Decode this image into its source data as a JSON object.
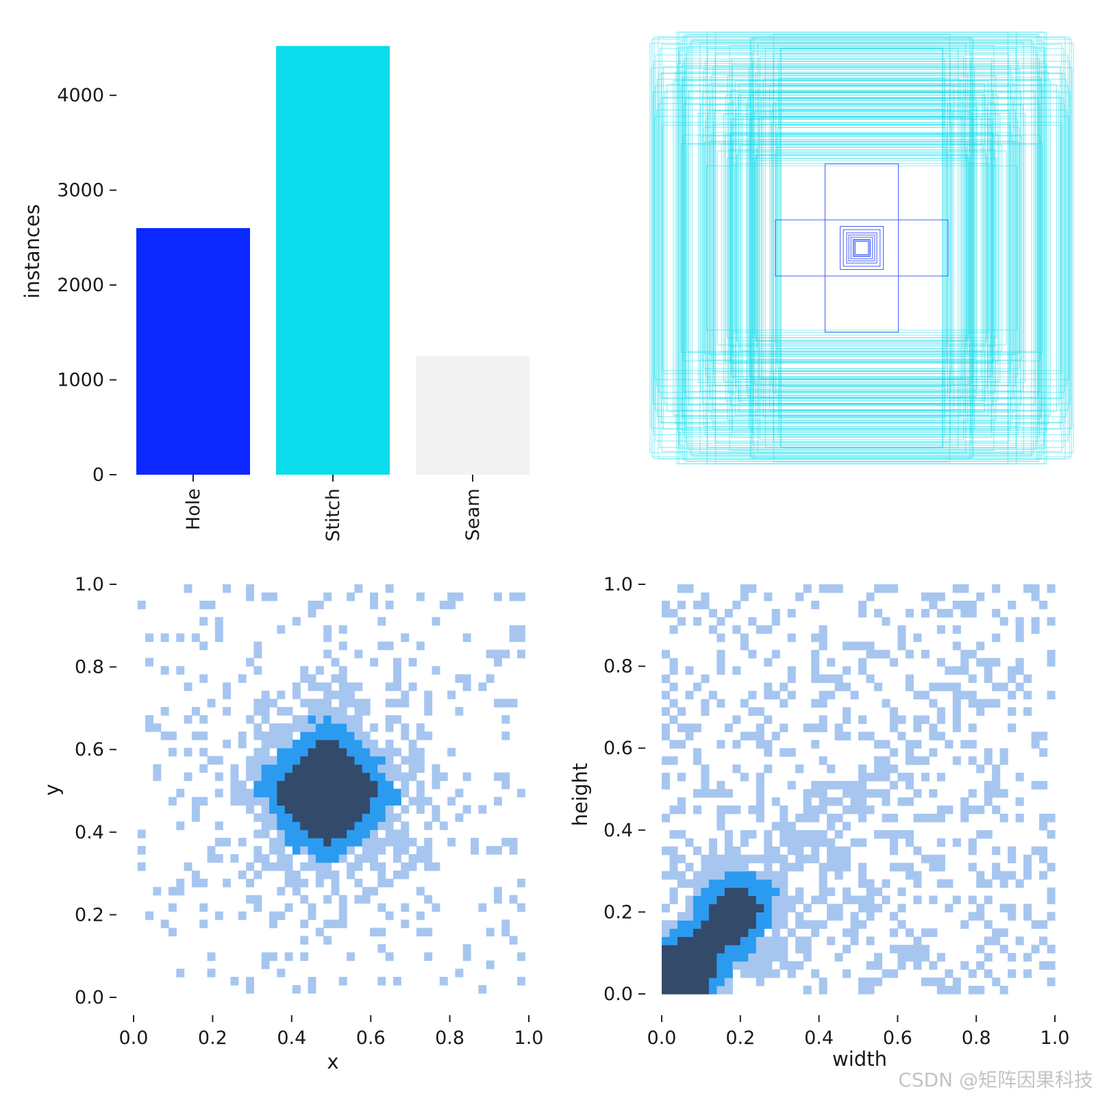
{
  "chart_data": [
    {
      "type": "bar",
      "categories": [
        "Hole",
        "Stitch",
        "Seam"
      ],
      "values": [
        2600,
        4520,
        1250
      ],
      "colors": [
        "#0a28ff",
        "#0bdceb",
        "#f2f2f2"
      ],
      "ylabel": "instances",
      "ylim": [
        0,
        4550
      ],
      "yticks": [
        0,
        1000,
        2000,
        3000,
        4000
      ],
      "ytick_labels": [
        "0",
        "1000",
        "2000",
        "3000",
        "4000"
      ],
      "grid": false
    },
    {
      "type": "box_overlay",
      "colors": [
        "#0a28ff",
        "#0bdceb"
      ],
      "groups": [
        {
          "class": "Stitch",
          "color_index": 1,
          "box_widths": [
            0.99,
            0.97,
            0.95,
            0.92,
            0.9,
            0.88,
            0.86,
            0.84,
            0.82,
            0.8,
            0.78,
            0.76,
            0.74,
            0.72,
            0.7,
            0.68,
            0.66,
            0.64,
            0.62,
            0.6,
            0.58,
            0.56,
            0.54,
            0.52,
            0.5,
            0.48,
            0.46,
            0.44,
            0.42,
            0.4,
            0.39,
            0.5,
            0.56,
            0.58,
            0.7,
            0.83,
            0.93,
            0.5,
            0.4
          ],
          "box_heights": [
            0.58,
            0.62,
            0.66,
            0.7,
            0.74,
            0.78,
            0.82,
            0.86,
            0.9,
            0.94,
            0.97,
            0.99,
            1.0,
            0.75,
            0.8,
            0.85,
            0.92,
            0.5,
            0.55,
            0.6,
            0.65,
            0.72,
            0.5,
            0.4,
            0.45,
            0.6,
            0.7,
            0.8,
            0.95,
            0.9,
            0.63,
            0.5,
            0.77,
            0.87,
            0.42,
            0.46,
            0.56,
            0.98,
            0.68
          ]
        },
        {
          "class": "Hole",
          "color_index": 0,
          "box_widths": [
            0.4,
            0.17,
            0.1,
            0.085,
            0.07,
            0.06,
            0.05,
            0.04,
            0.035
          ],
          "box_heights": [
            0.13,
            0.39,
            0.1,
            0.085,
            0.07,
            0.06,
            0.05,
            0.04,
            0.035
          ]
        }
      ],
      "center_box": {
        "width": 0.03,
        "height": 0.03
      }
    },
    {
      "type": "heatmap",
      "kind": "2d-histogram",
      "xlabel": "x",
      "ylabel": "y",
      "xlim": [
        0,
        1
      ],
      "ylim": [
        0,
        1
      ],
      "xticks": [
        0.0,
        0.2,
        0.4,
        0.6,
        0.8,
        1.0
      ],
      "yticks": [
        0.0,
        0.2,
        0.4,
        0.6,
        0.8,
        1.0
      ],
      "xtick_labels": [
        "0.0",
        "0.2",
        "0.4",
        "0.6",
        "0.8",
        "1.0"
      ],
      "ytick_labels": [
        "0.0",
        "0.2",
        "0.4",
        "0.6",
        "0.8",
        "1.0"
      ],
      "bins": 50,
      "x_range": [
        0.01,
        0.99
      ],
      "y_range": [
        0.01,
        1.0
      ],
      "density_center": [
        0.49,
        0.5
      ],
      "density_spread": [
        0.2,
        0.2
      ],
      "colors": [
        "#a6c6f0",
        "#2b9bf0",
        "#344a6a"
      ]
    },
    {
      "type": "heatmap",
      "kind": "2d-histogram",
      "xlabel": "width",
      "ylabel": "height",
      "xlim": [
        0,
        1
      ],
      "ylim": [
        0,
        1
      ],
      "xticks": [
        0.0,
        0.2,
        0.4,
        0.6,
        0.8,
        1.0
      ],
      "yticks": [
        0.0,
        0.2,
        0.4,
        0.6,
        0.8,
        1.0
      ],
      "xtick_labels": [
        "0.0",
        "0.2",
        "0.4",
        "0.6",
        "0.8",
        "1.0"
      ],
      "ytick_labels": [
        "0.0",
        "0.2",
        "0.4",
        "0.6",
        "0.8",
        "1.0"
      ],
      "bins": 50,
      "x_range": [
        0.0,
        1.0
      ],
      "y_range": [
        0.0,
        1.0
      ],
      "density_peak": [
        0.05,
        0.05
      ],
      "colors": [
        "#a6c6f0",
        "#2b9bf0",
        "#344a6a"
      ]
    }
  ],
  "watermark": "CSDN @矩阵因果科技"
}
